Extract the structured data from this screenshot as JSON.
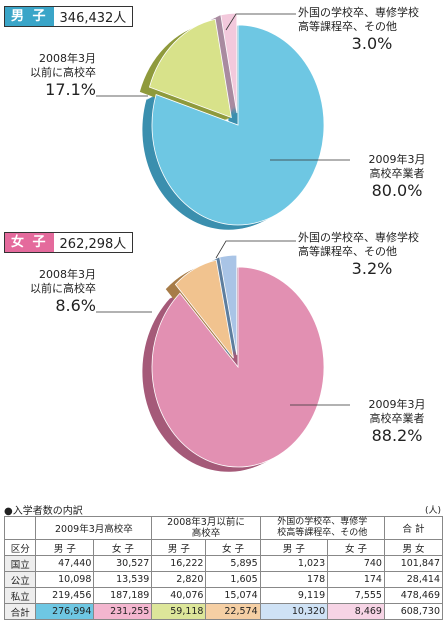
{
  "panels": [
    {
      "id": "male",
      "tag": "男 子",
      "count": "346,432人",
      "tag_color": "#3aa5c8",
      "slices": [
        {
          "label": "2009年3月\n高校卒業者",
          "value": "80.0%",
          "color": "#6ec7e3",
          "side": "#3b8fae"
        },
        {
          "label": "2008年3月\n以前に高校卒",
          "value": "17.1%",
          "color": "#d8e28a",
          "side": "#8f9a3c"
        },
        {
          "label": "外国の学校卒、専修学校\n高等課程卒、その他",
          "value": "3.0%",
          "color": "#f3c9dc",
          "side": "#a98ba0"
        }
      ]
    },
    {
      "id": "female",
      "tag": "女 子",
      "count": "262,298人",
      "tag_color": "#e46a9c",
      "slices": [
        {
          "label": "2009年3月\n高校卒業者",
          "value": "88.2%",
          "color": "#e290b2",
          "side": "#a55a79"
        },
        {
          "label": "2008年3月\n以前に高校卒",
          "value": "8.6%",
          "color": "#f1c38f",
          "side": "#a77c48"
        },
        {
          "label": "外国の学校卒、専修学校\n高等課程卒、その他",
          "value": "3.2%",
          "color": "#a9c4e6",
          "side": "#5e7e9e"
        }
      ]
    }
  ],
  "chart_data": [
    {
      "type": "pie",
      "title": "男 子 346,432人",
      "categories": [
        "2009年3月高校卒業者",
        "2008年3月以前に高校卒",
        "外国の学校卒、専修学校高等課程卒、その他"
      ],
      "values": [
        80.0,
        17.1,
        3.0
      ]
    },
    {
      "type": "pie",
      "title": "女 子 262,298人",
      "categories": [
        "2009年3月高校卒業者",
        "2008年3月以前に高校卒",
        "外国の学校卒、専修学校高等課程卒、その他"
      ],
      "values": [
        88.2,
        8.6,
        3.2
      ]
    }
  ],
  "table": {
    "title": "●入学者数の内訳",
    "unit": "(人)",
    "group_headers": [
      "2009年3月高校卒",
      "2008年3月以前に\n高校卒",
      "外国の学校卒、専修学\n校高等課程卒、その他",
      "合 計"
    ],
    "sub_headers": [
      "区分",
      "男 子",
      "女 子",
      "男 子",
      "女 子",
      "男 子",
      "女 子",
      "男 女"
    ],
    "rows": [
      [
        "国立",
        "47,440",
        "30,527",
        "16,222",
        "5,895",
        "1,023",
        "740",
        "101,847"
      ],
      [
        "公立",
        "10,098",
        "13,539",
        "2,820",
        "1,605",
        "178",
        "174",
        "28,414"
      ],
      [
        "私立",
        "219,456",
        "187,189",
        "40,076",
        "15,074",
        "9,119",
        "7,555",
        "478,469"
      ],
      [
        "合計",
        "276,994",
        "231,255",
        "59,118",
        "22,574",
        "10,320",
        "8,469",
        "608,730"
      ]
    ],
    "total_colors": [
      "#eeeeee",
      "#6ec7e3",
      "#f3b6cf",
      "#dde69a",
      "#f5cfa4",
      "#cfe2f5",
      "#f6d4e5",
      "#ffffff"
    ]
  }
}
